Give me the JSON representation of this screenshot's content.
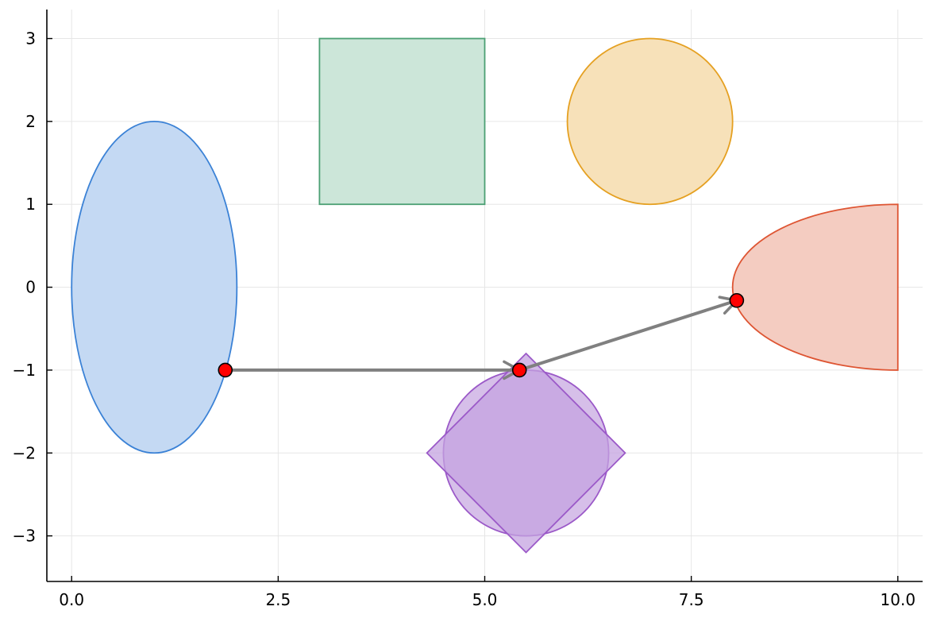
{
  "chart_data": {
    "type": "scatter",
    "title": "",
    "xlabel": "",
    "ylabel": "",
    "xlim": [
      -0.3,
      10.3
    ],
    "ylim": [
      -3.55,
      3.35
    ],
    "xticks": [
      0.0,
      2.5,
      5.0,
      7.5,
      10.0
    ],
    "xtick_labels": [
      "0.0",
      "2.5",
      "5.0",
      "7.5",
      "10.0"
    ],
    "yticks": [
      -3,
      -2,
      -1,
      0,
      1,
      2,
      3
    ],
    "ytick_labels": [
      "−3",
      "−2",
      "−1",
      "0",
      "1",
      "2",
      "3"
    ],
    "grid": true,
    "legend": "none",
    "shapes": [
      {
        "kind": "ellipse",
        "cx": 1,
        "cy": 0,
        "rx": 1,
        "ry": 2,
        "fill": "#c4d9f3",
        "stroke": "#3b82d6"
      },
      {
        "kind": "rectangle",
        "x0": 3,
        "y0": 1,
        "x1": 5,
        "y1": 3,
        "fill": "#cce6d9",
        "stroke": "#4ca074"
      },
      {
        "kind": "circle",
        "cx": 7,
        "cy": 2,
        "r": 1,
        "fill": "#f7e1b9",
        "stroke": "#e5a021"
      },
      {
        "kind": "half-ellipse",
        "cx": 10,
        "cy": 0,
        "rx": 2,
        "ry": 1,
        "fill": "#f4ccc1",
        "stroke": "#de5533"
      },
      {
        "kind": "circle",
        "cx": 5.5,
        "cy": -2,
        "r": 1,
        "fill": "#d6bfe9",
        "stroke": "#9b59c8"
      },
      {
        "kind": "diamond",
        "points": [
          [
            5.5,
            -0.8
          ],
          [
            6.7,
            -2
          ],
          [
            5.5,
            -3.2
          ],
          [
            4.3,
            -2
          ]
        ],
        "fill": "#c4a3e0",
        "stroke": "#9b59c8"
      }
    ],
    "points": [
      {
        "x": 1.86,
        "y": -1.0
      },
      {
        "x": 5.42,
        "y": -1.0
      },
      {
        "x": 8.05,
        "y": -0.16
      }
    ],
    "point_color": "#ff0000",
    "arrows": [
      {
        "from": [
          1.86,
          -1.0
        ],
        "to": [
          5.42,
          -1.0
        ]
      },
      {
        "from": [
          5.42,
          -1.0
        ],
        "to": [
          8.05,
          -0.16
        ]
      }
    ],
    "arrow_color": "#808080"
  }
}
